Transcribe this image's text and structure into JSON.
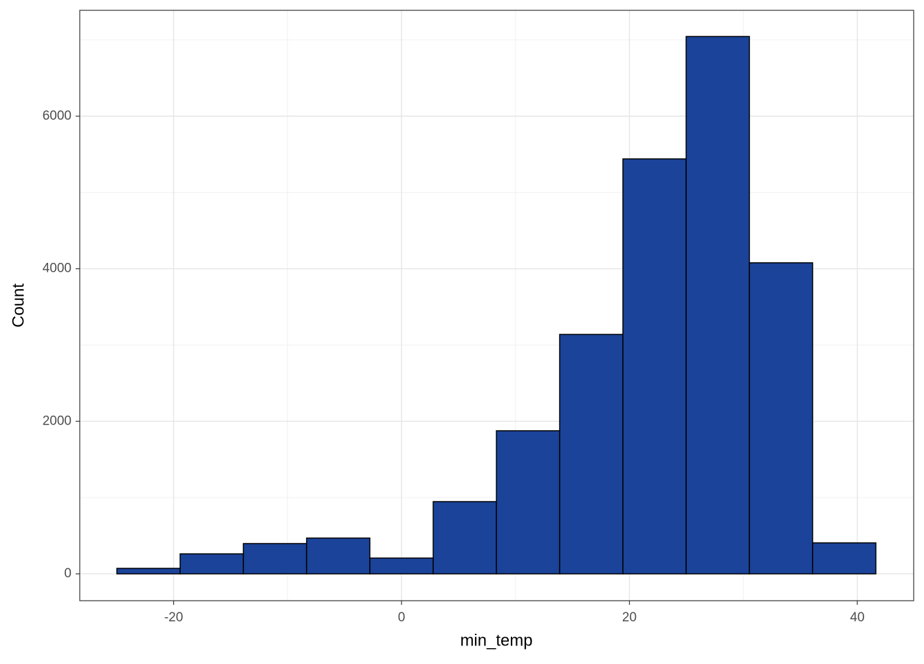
{
  "chart_data": {
    "type": "histogram",
    "x_label": "min_temp",
    "y_label": "Count",
    "bins": [
      -24.98,
      -19.43,
      -13.88,
      -8.33,
      -2.78,
      2.78,
      8.33,
      13.88,
      19.43,
      24.98,
      30.53,
      36.08,
      41.63
    ],
    "values": [
      72,
      262,
      397,
      469,
      207,
      947,
      1876,
      3139,
      5440,
      7045,
      4078,
      406
    ],
    "color": "#1a4399",
    "edge_color": "#000000",
    "xlim": [
      -28.24,
      44.95
    ],
    "ylim": [
      -352,
      7388
    ],
    "xticks": [
      -20,
      0,
      20,
      40
    ],
    "yticks": [
      0,
      2000,
      4000,
      6000
    ],
    "x_minor_grid": [
      -30,
      -10,
      10,
      30
    ],
    "y_minor_grid": [
      1000,
      3000,
      5000,
      7000
    ],
    "grid": true
  }
}
